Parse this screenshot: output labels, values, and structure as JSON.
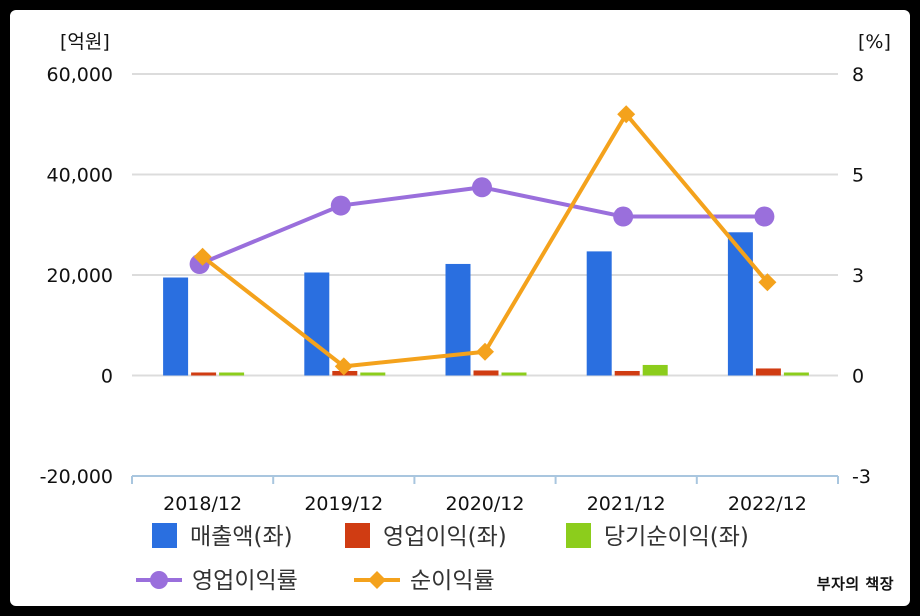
{
  "chart_data": {
    "type": "bar",
    "categories": [
      "2018/12",
      "2019/12",
      "2020/12",
      "2021/12",
      "2022/12"
    ],
    "left_axis": {
      "unit_label": "[억원]",
      "ticks": [
        "60,000",
        "40,000",
        "20,000",
        "0",
        "-20,000"
      ],
      "ylim": [
        -20000,
        60000
      ]
    },
    "right_axis": {
      "unit_label": "[%]",
      "ticks": [
        "8",
        "5",
        "3",
        "0",
        "-3"
      ],
      "ylim": [
        -3,
        8
      ]
    },
    "bar_series": [
      {
        "name": "매출액(좌)",
        "color": "#2a6fe0",
        "values": [
          19500,
          20500,
          22200,
          24700,
          28500
        ]
      },
      {
        "name": "영업이익(좌)",
        "color": "#d03c12",
        "values": [
          600,
          900,
          1000,
          900,
          1400
        ]
      },
      {
        "name": "당기순이익(좌)",
        "color": "#8ccd1c",
        "values": [
          550,
          0,
          350,
          2100,
          500
        ]
      }
    ],
    "line_series": [
      {
        "name": "영업이익률",
        "color": "#9a6fdc",
        "marker": "circle",
        "values": [
          2.8,
          4.4,
          4.9,
          4.1,
          4.1
        ]
      },
      {
        "name": "순이익률",
        "color": "#f4a21c",
        "marker": "diamond",
        "values": [
          3.0,
          0.0,
          0.4,
          6.9,
          2.3
        ]
      }
    ],
    "grid": true,
    "legend_placement": "bottom"
  },
  "watermark": "부자의 책장"
}
